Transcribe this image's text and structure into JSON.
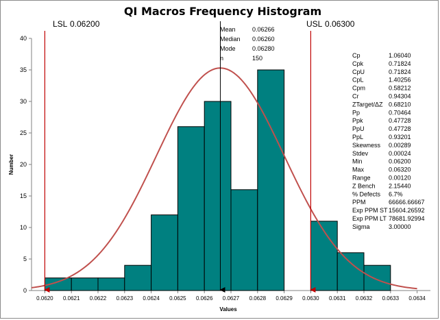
{
  "chart_data": {
    "type": "bar",
    "title": "QI Macros Frequency Histogram",
    "xlabel": "Values",
    "ylabel": "Number",
    "ylim": [
      0,
      40
    ],
    "yticks": [
      0,
      5,
      10,
      15,
      20,
      25,
      30,
      35,
      40
    ],
    "xlim": [
      0.06195,
      0.06345
    ],
    "xticks": [
      "0.0620",
      "0.0621",
      "0.0622",
      "0.0623",
      "0.0624",
      "0.0625",
      "0.0626",
      "0.0627",
      "0.0628",
      "0.0629",
      "0.0630",
      "0.0631",
      "0.0632",
      "0.0633",
      "0.0634"
    ],
    "bins": [
      {
        "from": 0.062,
        "to": 0.0621,
        "count": 2
      },
      {
        "from": 0.0621,
        "to": 0.0622,
        "count": 2
      },
      {
        "from": 0.0622,
        "to": 0.0623,
        "count": 2
      },
      {
        "from": 0.0623,
        "to": 0.0624,
        "count": 4
      },
      {
        "from": 0.0624,
        "to": 0.0625,
        "count": 12
      },
      {
        "from": 0.0625,
        "to": 0.0626,
        "count": 26
      },
      {
        "from": 0.0626,
        "to": 0.0627,
        "count": 30
      },
      {
        "from": 0.0627,
        "to": 0.0628,
        "count": 16
      },
      {
        "from": 0.0628,
        "to": 0.0629,
        "count": 35
      },
      {
        "from": 0.063,
        "to": 0.0631,
        "count": 11
      },
      {
        "from": 0.0631,
        "to": 0.0632,
        "count": 6
      },
      {
        "from": 0.0632,
        "to": 0.0633,
        "count": 4
      }
    ],
    "normal_curve": {
      "mean": 0.06266,
      "stdev": 0.00024,
      "peak": 35.3,
      "from": 0.06195,
      "to": 0.0634
    },
    "lsl": {
      "label": "LSL",
      "value_text": "0.06200",
      "value": 0.062
    },
    "usl": {
      "label": "USL",
      "value_text": "0.06300",
      "value": 0.063
    },
    "mean_line": {
      "value": 0.06266
    },
    "center_stats": [
      {
        "label": "Mean",
        "value": "0.06266"
      },
      {
        "label": "Median",
        "value": "0.06260"
      },
      {
        "label": "Mode",
        "value": "0.06280"
      },
      {
        "label": "n",
        "value": "150"
      }
    ],
    "capability_stats": [
      {
        "label": "Cp",
        "value": "1.06040",
        "highlight": true
      },
      {
        "label": "Cpk",
        "value": "0.71824",
        "highlight": false
      },
      {
        "label": "CpU",
        "value": "0.71824",
        "highlight": false
      },
      {
        "label": "CpL",
        "value": "1.40256",
        "highlight": false
      },
      {
        "label": "Cpm",
        "value": "0.58212",
        "highlight": false
      },
      {
        "label": "Cr",
        "value": "0.94304",
        "highlight": true
      },
      {
        "label": "ZTarget/ΔZ",
        "value": "0.68210",
        "highlight": true
      },
      {
        "label": "Pp",
        "value": "0.70464",
        "highlight": true
      },
      {
        "label": "Ppk",
        "value": "0.47728",
        "highlight": false
      },
      {
        "label": "PpU",
        "value": "0.47728",
        "highlight": false
      },
      {
        "label": "PpL",
        "value": "0.93201",
        "highlight": false
      },
      {
        "label": "Skewness",
        "value": "0.00289",
        "highlight": false
      },
      {
        "label": "Stdev",
        "value": "0.00024",
        "highlight": false
      },
      {
        "label": "Min",
        "value": "0.06200",
        "highlight": false
      },
      {
        "label": "Max",
        "value": "0.06320",
        "highlight": false
      },
      {
        "label": "Range",
        "value": "0.00120",
        "highlight": false
      },
      {
        "label": "Z Bench",
        "value": "2.15440",
        "highlight": false
      },
      {
        "label": "% Defects",
        "value": "6.7%",
        "highlight": false
      },
      {
        "label": "PPM",
        "value": "66666.66667",
        "highlight": false
      },
      {
        "label": "Exp PPM ST",
        "value": "15604.26592",
        "highlight": false
      },
      {
        "label": "Exp PPM LT",
        "value": "78681.92994",
        "highlight": false
      },
      {
        "label": "Sigma",
        "value": "3.00000",
        "highlight": false
      }
    ],
    "colors": {
      "bar_fill": "#008080",
      "bar_stroke": "#000000",
      "curve": "#c0504d",
      "limit_line": "#c00000",
      "mean_line": "#000000",
      "highlight_text": "#ff0000",
      "axis": "#808080"
    }
  }
}
